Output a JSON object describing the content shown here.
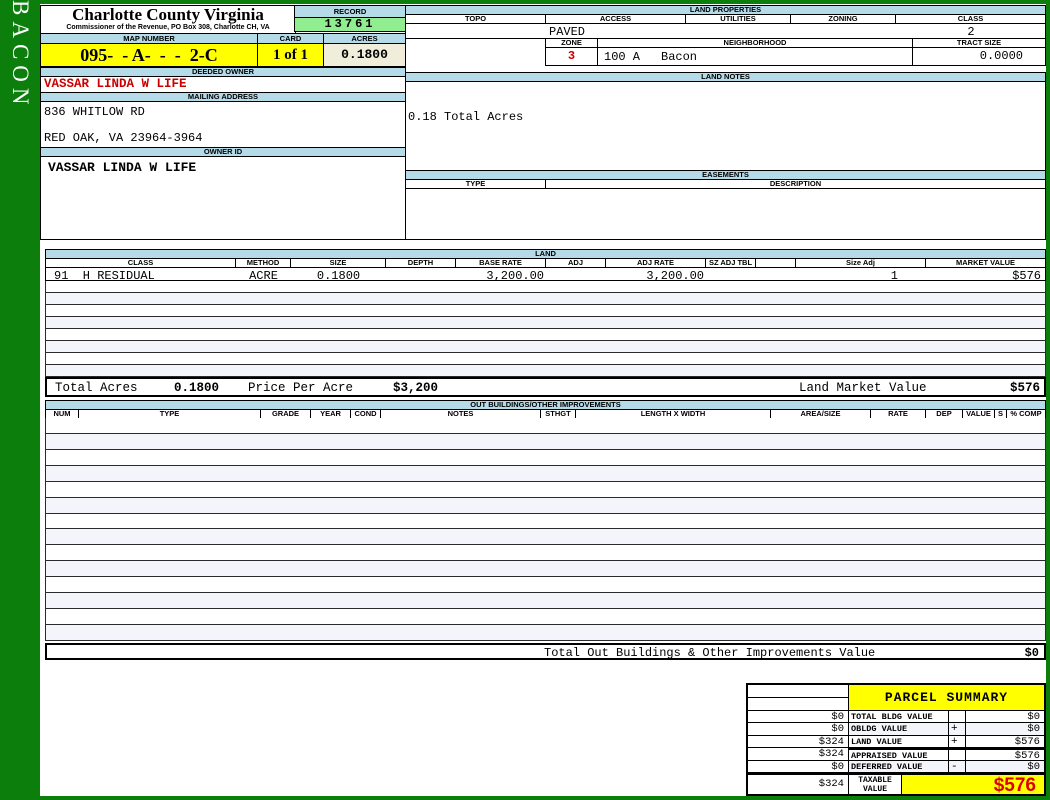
{
  "colors": {
    "frame_green": "#0b7e0b",
    "header_blue": "#b5dae8",
    "highlight_yellow": "#ffff00",
    "record_green": "#90ee90",
    "cream": "#f0eeda",
    "red_text": "#cc0000",
    "alt_row": "#f3f5fa"
  },
  "sidebar": {
    "vertical_label": "BACON"
  },
  "header": {
    "county_title": "Charlotte County Virginia",
    "commissioner_line": "Commissioner of the Revenue, PO  Box 308, Charlotte CH, VA",
    "record_label": "RECORD",
    "record_value": "13761",
    "map_number_label": "MAP NUMBER",
    "map_number_value": "095-  - A-  -  -  2-C",
    "card_label": "CARD",
    "card_value": "1 of 1",
    "acres_label": "ACRES",
    "acres_value": "0.1800"
  },
  "owner": {
    "deeded_owner_label": "DEEDED OWNER",
    "deeded_owner_value": "VASSAR LINDA W LIFE",
    "mailing_address_label": "MAILING ADDRESS",
    "address_line1": "836 WHITLOW RD",
    "address_line2": "RED OAK, VA 23964-3964",
    "owner_id_label": "OWNER ID",
    "owner_id_value": "VASSAR LINDA W LIFE"
  },
  "land_properties": {
    "section_label": "LAND PROPERTIES",
    "columns": [
      "TOPO",
      "ACCESS",
      "UTILITIES",
      "ZONING",
      "CLASS"
    ],
    "access_value": "PAVED",
    "class_value": "2",
    "zone_label": "ZONE",
    "zone_value": "3",
    "neighborhood_label": "NEIGHBORHOOD",
    "neighborhood_code": "100 A",
    "neighborhood_name": "Bacon",
    "tract_size_label": "TRACT SIZE",
    "tract_size_value": "0.0000"
  },
  "land_notes": {
    "section_label": "LAND NOTES",
    "note": "0.18 Total Acres"
  },
  "easements": {
    "section_label": "EASEMENTS",
    "type_label": "TYPE",
    "description_label": "DESCRIPTION"
  },
  "land": {
    "section_label": "LAND",
    "columns": [
      "CLASS",
      "METHOD",
      "SIZE",
      "DEPTH",
      "BASE RATE",
      "ADJ",
      "ADJ RATE",
      "SZ ADJ TBL",
      "",
      "Size Adj",
      "MARKET VALUE"
    ],
    "rows": [
      {
        "class": "91  H RESIDUAL",
        "method": "ACRE",
        "size": "0.1800",
        "depth": "",
        "base_rate": "3,200.00",
        "adj": "",
        "adj_rate": "3,200.00",
        "sz_adj_tbl": "",
        "size_adj": "1",
        "market_value": "$576"
      }
    ],
    "empty_row_count": 8,
    "totals": {
      "total_acres_label": "Total Acres",
      "total_acres_value": "0.1800",
      "price_per_acre_label": "Price Per Acre",
      "price_per_acre_value": "$3,200",
      "market_value_label": "Land Market Value",
      "market_value_value": "$576"
    }
  },
  "out_buildings": {
    "section_label": "OUT BUILDINGS/OTHER IMPROVEMENTS",
    "columns": [
      "NUM",
      "TYPE",
      "GRADE",
      "YEAR",
      "COND",
      "NOTES",
      "STHGT",
      "LENGTH X WIDTH",
      "AREA/SIZE",
      "RATE",
      "DEP",
      "VALUE",
      "S",
      "% COMP"
    ],
    "empty_row_count": 14,
    "total_label": "Total Out Buildings & Other Improvements Value",
    "total_value": "$0"
  },
  "parcel_summary": {
    "title": "PARCEL SUMMARY",
    "rows": [
      {
        "prior": "$0",
        "label": "TOTAL BLDG VALUE",
        "op": "",
        "value": "$0"
      },
      {
        "prior": "$0",
        "label": "OBLDG VALUE",
        "op": "+",
        "value": "$0"
      },
      {
        "prior": "$324",
        "label": "LAND VALUE",
        "op": "+",
        "value": "$576"
      },
      {
        "prior": "$324",
        "label": "APPRAISED VALUE",
        "op": "",
        "value": "$576"
      },
      {
        "prior": "$0",
        "label": "DEFERRED VALUE",
        "op": "-",
        "value": "$0"
      }
    ],
    "taxable": {
      "prior": "$324",
      "label_line1": "TAXABLE",
      "label_line2": "VALUE",
      "value": "$576"
    }
  }
}
